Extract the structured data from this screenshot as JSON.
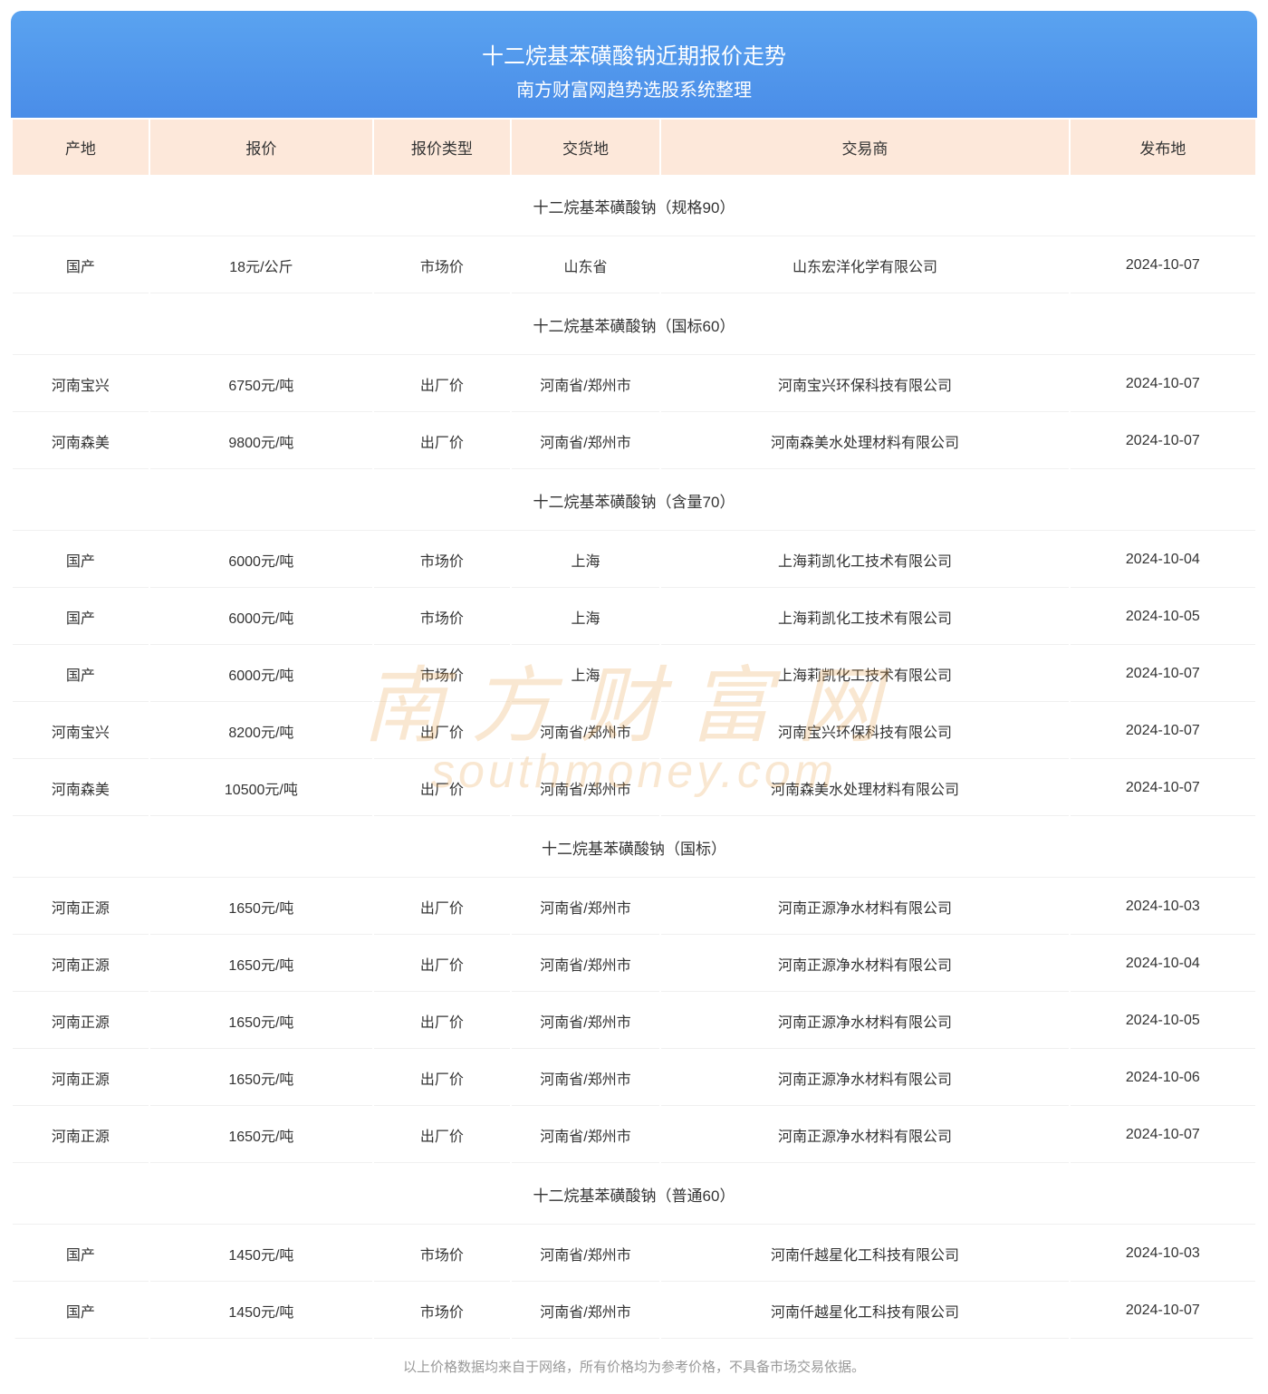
{
  "header": {
    "title": "十二烷基苯磺酸钠近期报价走势",
    "subtitle": "南方财富网趋势选股系统整理"
  },
  "columns": [
    "产地",
    "报价",
    "报价类型",
    "交货地",
    "交易商",
    "发布地"
  ],
  "column_widths_pct": [
    11,
    18,
    11,
    12,
    33,
    15
  ],
  "header_bg": "#fde8da",
  "banner_gradient": [
    "#5aa3f0",
    "#4a8de8"
  ],
  "row_border_color": "#f0f0f0",
  "text_color": "#333333",
  "footer_color": "#999999",
  "sections": [
    {
      "label": "十二烷基苯磺酸钠（规格90）",
      "rows": [
        {
          "origin": "国产",
          "price": "18元/公斤",
          "ptype": "市场价",
          "loc": "山东省",
          "dealer": "山东宏洋化学有限公司",
          "date": "2024-10-07"
        }
      ]
    },
    {
      "label": "十二烷基苯磺酸钠（国标60）",
      "rows": [
        {
          "origin": "河南宝兴",
          "price": "6750元/吨",
          "ptype": "出厂价",
          "loc": "河南省/郑州市",
          "dealer": "河南宝兴环保科技有限公司",
          "date": "2024-10-07"
        },
        {
          "origin": "河南森美",
          "price": "9800元/吨",
          "ptype": "出厂价",
          "loc": "河南省/郑州市",
          "dealer": "河南森美水处理材料有限公司",
          "date": "2024-10-07"
        }
      ]
    },
    {
      "label": "十二烷基苯磺酸钠（含量70）",
      "rows": [
        {
          "origin": "国产",
          "price": "6000元/吨",
          "ptype": "市场价",
          "loc": "上海",
          "dealer": "上海莉凯化工技术有限公司",
          "date": "2024-10-04"
        },
        {
          "origin": "国产",
          "price": "6000元/吨",
          "ptype": "市场价",
          "loc": "上海",
          "dealer": "上海莉凯化工技术有限公司",
          "date": "2024-10-05"
        },
        {
          "origin": "国产",
          "price": "6000元/吨",
          "ptype": "市场价",
          "loc": "上海",
          "dealer": "上海莉凯化工技术有限公司",
          "date": "2024-10-07"
        },
        {
          "origin": "河南宝兴",
          "price": "8200元/吨",
          "ptype": "出厂价",
          "loc": "河南省/郑州市",
          "dealer": "河南宝兴环保科技有限公司",
          "date": "2024-10-07"
        },
        {
          "origin": "河南森美",
          "price": "10500元/吨",
          "ptype": "出厂价",
          "loc": "河南省/郑州市",
          "dealer": "河南森美水处理材料有限公司",
          "date": "2024-10-07"
        }
      ]
    },
    {
      "label": "十二烷基苯磺酸钠（国标）",
      "rows": [
        {
          "origin": "河南正源",
          "price": "1650元/吨",
          "ptype": "出厂价",
          "loc": "河南省/郑州市",
          "dealer": "河南正源净水材料有限公司",
          "date": "2024-10-03"
        },
        {
          "origin": "河南正源",
          "price": "1650元/吨",
          "ptype": "出厂价",
          "loc": "河南省/郑州市",
          "dealer": "河南正源净水材料有限公司",
          "date": "2024-10-04"
        },
        {
          "origin": "河南正源",
          "price": "1650元/吨",
          "ptype": "出厂价",
          "loc": "河南省/郑州市",
          "dealer": "河南正源净水材料有限公司",
          "date": "2024-10-05"
        },
        {
          "origin": "河南正源",
          "price": "1650元/吨",
          "ptype": "出厂价",
          "loc": "河南省/郑州市",
          "dealer": "河南正源净水材料有限公司",
          "date": "2024-10-06"
        },
        {
          "origin": "河南正源",
          "price": "1650元/吨",
          "ptype": "出厂价",
          "loc": "河南省/郑州市",
          "dealer": "河南正源净水材料有限公司",
          "date": "2024-10-07"
        }
      ]
    },
    {
      "label": "十二烷基苯磺酸钠（普通60）",
      "rows": [
        {
          "origin": "国产",
          "price": "1450元/吨",
          "ptype": "市场价",
          "loc": "河南省/郑州市",
          "dealer": "河南仟越星化工科技有限公司",
          "date": "2024-10-03"
        },
        {
          "origin": "国产",
          "price": "1450元/吨",
          "ptype": "市场价",
          "loc": "河南省/郑州市",
          "dealer": "河南仟越星化工科技有限公司",
          "date": "2024-10-07"
        }
      ]
    }
  ],
  "footer": "以上价格数据均来自于网络，所有价格均为参考价格，不具备市场交易依据。",
  "watermark": {
    "cn": "南方财富网",
    "en": "southmoney.com"
  }
}
